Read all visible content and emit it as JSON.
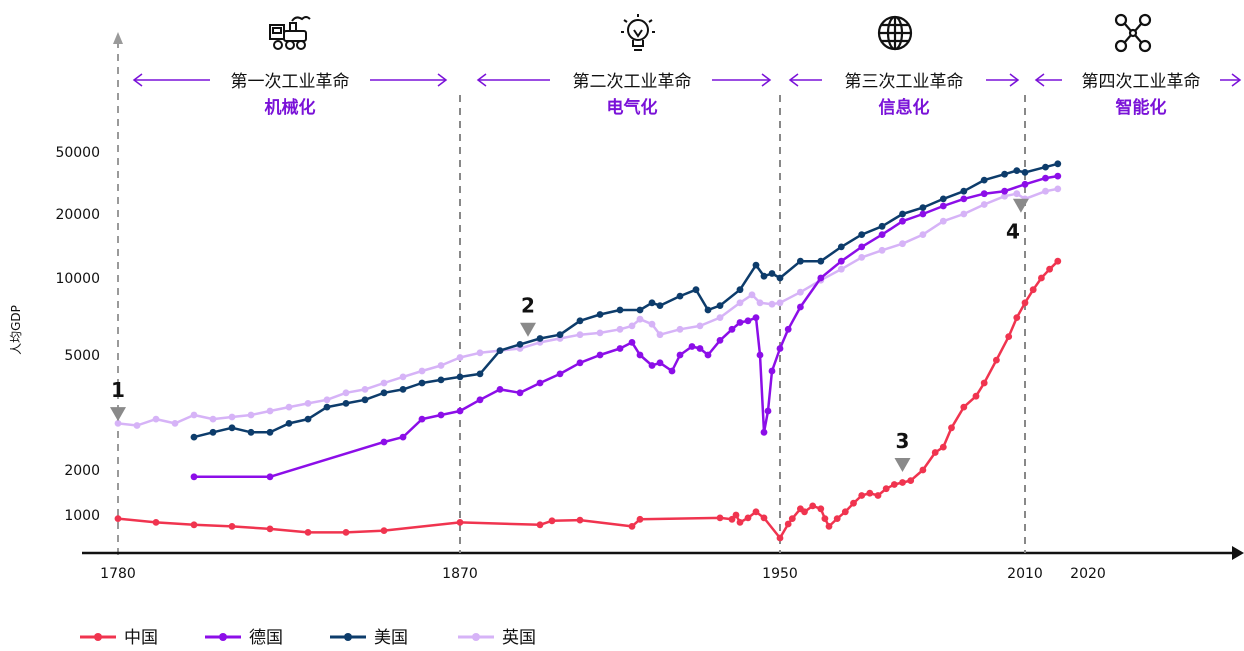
{
  "eras": [
    {
      "name": "第一次工业革命",
      "subtitle": "机械化",
      "icon": "steam-locomotive-icon"
    },
    {
      "name": "第二次工业革命",
      "subtitle": "电气化",
      "icon": "lightbulb-icon"
    },
    {
      "name": "第三次工业革命",
      "subtitle": "信息化",
      "icon": "globe-icon"
    },
    {
      "name": "第四次工业革命",
      "subtitle": "智能化",
      "icon": "network-nodes-icon"
    }
  ],
  "markers": [
    {
      "label": "1",
      "year": 1780,
      "value": 3000
    },
    {
      "label": "2",
      "year": 1887,
      "value": 6000
    },
    {
      "label": "3",
      "year": 1980,
      "value": 2000
    },
    {
      "label": "4",
      "year": 2009,
      "value": 21000
    }
  ],
  "legend": [
    {
      "name": "中国",
      "color": "#f0344f"
    },
    {
      "name": "德国",
      "color": "#8c0ee8"
    },
    {
      "name": "美国",
      "color": "#0d3c6b"
    },
    {
      "name": "英国",
      "color": "#d6b3f7"
    }
  ],
  "chart_data": {
    "type": "line",
    "title": "",
    "xlabel": "",
    "ylabel": "人均GDP",
    "x_ticks": [
      "1780",
      "1870",
      "1950",
      "2010",
      "2020"
    ],
    "x_tick_years": [
      1780,
      1870,
      1950,
      2010,
      2020
    ],
    "y_ticks": [
      "50000",
      "20000",
      "10000",
      "5000",
      "2000",
      "1000"
    ],
    "y_tick_values": [
      50000,
      20000,
      10000,
      5000,
      2000,
      1000
    ],
    "y_scale": "log",
    "era_boundaries": [
      1780,
      1870,
      1950,
      2010
    ],
    "series": [
      {
        "name": "中国",
        "color": "#f0344f",
        "points": [
          [
            1780,
            950
          ],
          [
            1790,
            900
          ],
          [
            1800,
            870
          ],
          [
            1810,
            850
          ],
          [
            1820,
            820
          ],
          [
            1830,
            780
          ],
          [
            1840,
            780
          ],
          [
            1850,
            800
          ],
          [
            1870,
            900
          ],
          [
            1890,
            870
          ],
          [
            1893,
            920
          ],
          [
            1900,
            930
          ],
          [
            1913,
            850
          ],
          [
            1915,
            940
          ],
          [
            1935,
            960
          ],
          [
            1938,
            940
          ],
          [
            1939,
            1000
          ],
          [
            1940,
            900
          ],
          [
            1942,
            960
          ],
          [
            1944,
            1050
          ],
          [
            1946,
            960
          ],
          [
            1950,
            720
          ],
          [
            1952,
            880
          ],
          [
            1953,
            950
          ],
          [
            1955,
            1100
          ],
          [
            1956,
            1050
          ],
          [
            1958,
            1150
          ],
          [
            1960,
            1100
          ],
          [
            1961,
            950
          ],
          [
            1962,
            850
          ],
          [
            1964,
            950
          ],
          [
            1966,
            1050
          ],
          [
            1968,
            1200
          ],
          [
            1970,
            1350
          ],
          [
            1972,
            1400
          ],
          [
            1974,
            1350
          ],
          [
            1976,
            1500
          ],
          [
            1978,
            1600
          ],
          [
            1980,
            1650
          ],
          [
            1982,
            1700
          ],
          [
            1985,
            2000
          ],
          [
            1988,
            2300
          ],
          [
            1990,
            2400
          ],
          [
            1992,
            2800
          ],
          [
            1995,
            3300
          ],
          [
            1998,
            3600
          ],
          [
            2000,
            4000
          ],
          [
            2003,
            4800
          ],
          [
            2006,
            5900
          ],
          [
            2008,
            7000
          ],
          [
            2010,
            8000
          ],
          [
            2012,
            9000
          ],
          [
            2014,
            10000
          ],
          [
            2016,
            11000
          ],
          [
            2018,
            12000
          ]
        ]
      },
      {
        "name": "德国",
        "color": "#8c0ee8",
        "points": [
          [
            1800,
            1800
          ],
          [
            1820,
            1800
          ],
          [
            1850,
            2500
          ],
          [
            1855,
            2600
          ],
          [
            1860,
            3000
          ],
          [
            1865,
            3100
          ],
          [
            1870,
            3200
          ],
          [
            1875,
            3500
          ],
          [
            1880,
            3800
          ],
          [
            1885,
            3700
          ],
          [
            1890,
            4000
          ],
          [
            1895,
            4300
          ],
          [
            1900,
            4700
          ],
          [
            1905,
            5000
          ],
          [
            1910,
            5300
          ],
          [
            1913,
            5600
          ],
          [
            1915,
            5000
          ],
          [
            1918,
            4600
          ],
          [
            1920,
            4700
          ],
          [
            1923,
            4400
          ],
          [
            1925,
            5000
          ],
          [
            1928,
            5400
          ],
          [
            1930,
            5300
          ],
          [
            1932,
            5000
          ],
          [
            1935,
            5700
          ],
          [
            1938,
            6300
          ],
          [
            1940,
            6700
          ],
          [
            1942,
            6800
          ],
          [
            1944,
            7000
          ],
          [
            1945,
            5000
          ],
          [
            1946,
            2700
          ],
          [
            1947,
            3200
          ],
          [
            1948,
            4400
          ],
          [
            1950,
            5300
          ],
          [
            1952,
            6300
          ],
          [
            1955,
            7700
          ],
          [
            1960,
            10000
          ],
          [
            1965,
            12000
          ],
          [
            1970,
            14000
          ],
          [
            1975,
            16000
          ],
          [
            1980,
            18500
          ],
          [
            1985,
            20000
          ],
          [
            1990,
            22500
          ],
          [
            1995,
            25000
          ],
          [
            2000,
            27000
          ],
          [
            2005,
            28000
          ],
          [
            2010,
            31000
          ],
          [
            2015,
            34000
          ],
          [
            2018,
            35000
          ]
        ]
      },
      {
        "name": "美国",
        "color": "#0d3c6b",
        "points": [
          [
            1800,
            2600
          ],
          [
            1805,
            2700
          ],
          [
            1810,
            2800
          ],
          [
            1815,
            2700
          ],
          [
            1820,
            2700
          ],
          [
            1825,
            2900
          ],
          [
            1830,
            3000
          ],
          [
            1835,
            3300
          ],
          [
            1840,
            3400
          ],
          [
            1845,
            3500
          ],
          [
            1850,
            3700
          ],
          [
            1855,
            3800
          ],
          [
            1860,
            4000
          ],
          [
            1865,
            4100
          ],
          [
            1870,
            4200
          ],
          [
            1875,
            4300
          ],
          [
            1880,
            5200
          ],
          [
            1885,
            5500
          ],
          [
            1890,
            5800
          ],
          [
            1895,
            6000
          ],
          [
            1900,
            6800
          ],
          [
            1905,
            7200
          ],
          [
            1910,
            7500
          ],
          [
            1915,
            7500
          ],
          [
            1918,
            8000
          ],
          [
            1920,
            7800
          ],
          [
            1925,
            8500
          ],
          [
            1929,
            9000
          ],
          [
            1932,
            7500
          ],
          [
            1935,
            7800
          ],
          [
            1940,
            9000
          ],
          [
            1944,
            11500
          ],
          [
            1946,
            10200
          ],
          [
            1948,
            10500
          ],
          [
            1950,
            10000
          ],
          [
            1955,
            12000
          ],
          [
            1960,
            12000
          ],
          [
            1965,
            14000
          ],
          [
            1970,
            16000
          ],
          [
            1975,
            17500
          ],
          [
            1980,
            20000
          ],
          [
            1985,
            22000
          ],
          [
            1990,
            25000
          ],
          [
            1995,
            28000
          ],
          [
            2000,
            33000
          ],
          [
            2005,
            36000
          ],
          [
            2008,
            38000
          ],
          [
            2010,
            37000
          ],
          [
            2015,
            40000
          ],
          [
            2018,
            42000
          ]
        ]
      },
      {
        "name": "英国",
        "color": "#d6b3f7",
        "points": [
          [
            1780,
            2900
          ],
          [
            1785,
            2850
          ],
          [
            1790,
            3000
          ],
          [
            1795,
            2900
          ],
          [
            1800,
            3100
          ],
          [
            1805,
            3000
          ],
          [
            1810,
            3050
          ],
          [
            1815,
            3100
          ],
          [
            1820,
            3200
          ],
          [
            1825,
            3300
          ],
          [
            1830,
            3400
          ],
          [
            1835,
            3500
          ],
          [
            1840,
            3700
          ],
          [
            1845,
            3800
          ],
          [
            1850,
            4000
          ],
          [
            1855,
            4200
          ],
          [
            1860,
            4400
          ],
          [
            1865,
            4600
          ],
          [
            1870,
            4900
          ],
          [
            1875,
            5100
          ],
          [
            1880,
            5200
          ],
          [
            1885,
            5300
          ],
          [
            1890,
            5600
          ],
          [
            1895,
            5800
          ],
          [
            1900,
            6000
          ],
          [
            1905,
            6100
          ],
          [
            1910,
            6300
          ],
          [
            1913,
            6500
          ],
          [
            1915,
            6900
          ],
          [
            1918,
            6600
          ],
          [
            1920,
            6000
          ],
          [
            1925,
            6300
          ],
          [
            1930,
            6500
          ],
          [
            1935,
            7000
          ],
          [
            1940,
            8000
          ],
          [
            1943,
            8600
          ],
          [
            1945,
            8000
          ],
          [
            1948,
            7900
          ],
          [
            1950,
            8000
          ],
          [
            1955,
            8800
          ],
          [
            1960,
            9800
          ],
          [
            1965,
            11000
          ],
          [
            1970,
            12500
          ],
          [
            1975,
            13500
          ],
          [
            1980,
            14500
          ],
          [
            1985,
            16000
          ],
          [
            1990,
            18500
          ],
          [
            1995,
            20000
          ],
          [
            2000,
            23000
          ],
          [
            2005,
            26000
          ],
          [
            2008,
            27000
          ],
          [
            2010,
            25000
          ],
          [
            2015,
            28000
          ],
          [
            2018,
            29000
          ]
        ]
      }
    ]
  }
}
